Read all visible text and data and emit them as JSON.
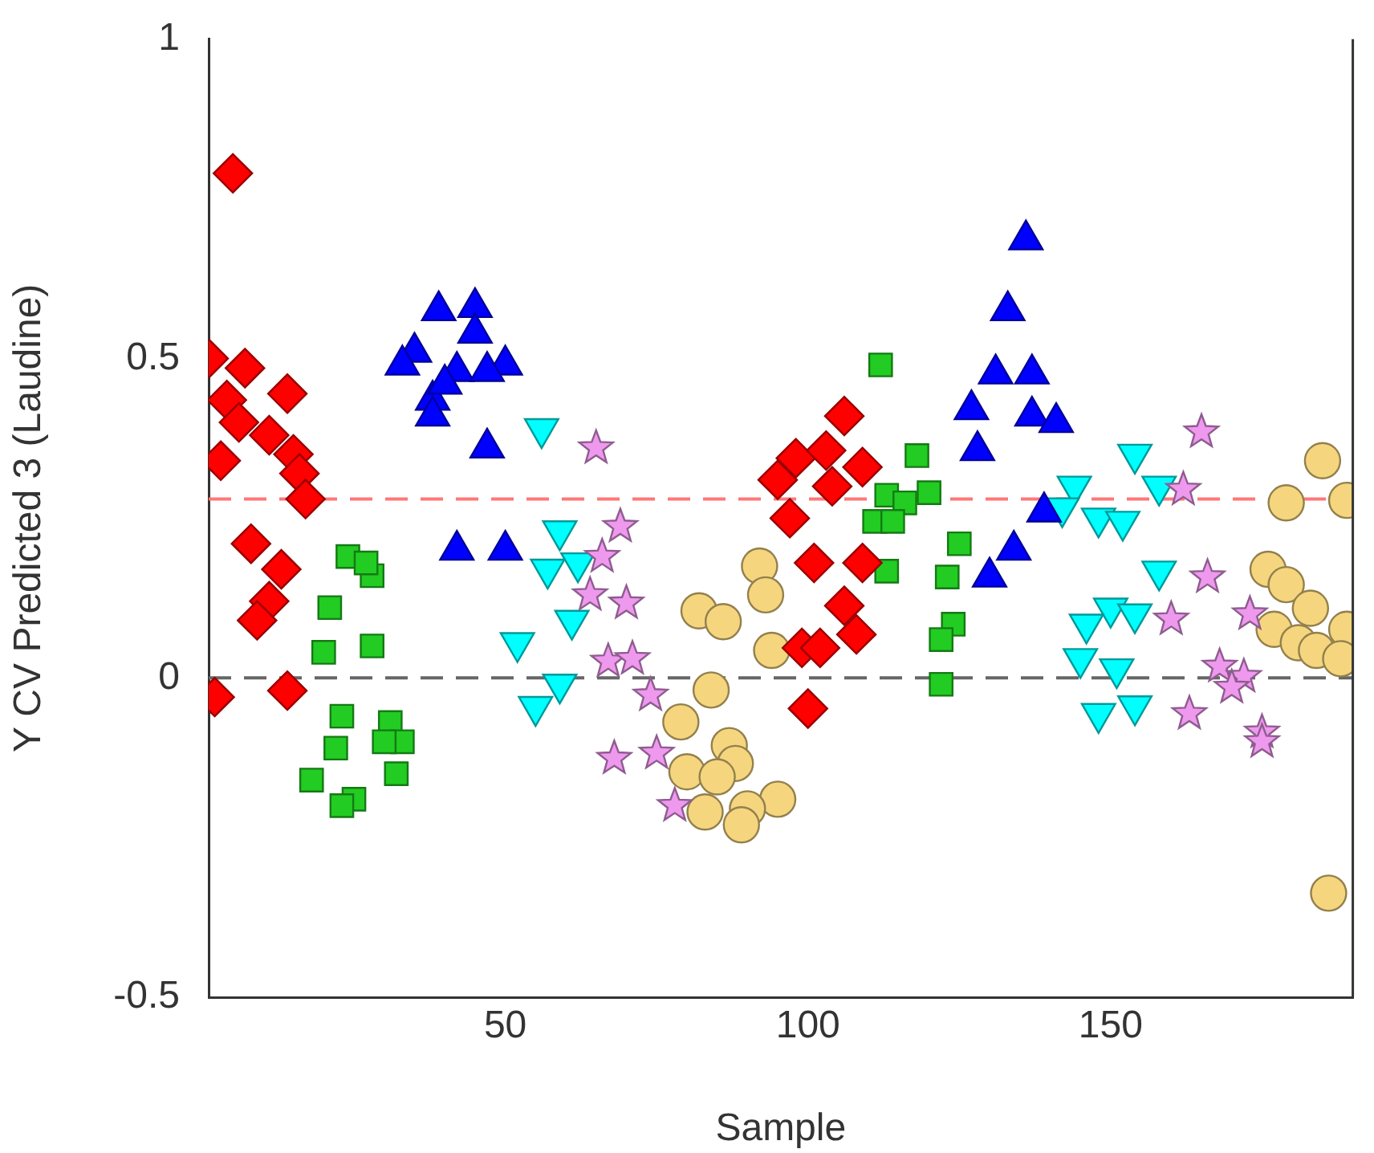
{
  "chart_data": {
    "type": "scatter",
    "xlabel": "Sample",
    "ylabel": "Y CV Predicted 3 (Laudine)",
    "xlim": [
      1,
      190
    ],
    "ylim": [
      -0.5,
      1
    ],
    "xticks": [
      50,
      100,
      150
    ],
    "yticks": [
      -0.5,
      0,
      0.5,
      1
    ],
    "grid": false,
    "ref_lines": [
      {
        "axis": "y",
        "value": 0,
        "color": "#666666",
        "line_style": "dashed"
      },
      {
        "axis": "y",
        "value": 0.28,
        "color": "#ff7777",
        "line_style": "dashed"
      }
    ],
    "series": [
      {
        "color": "#ff0000",
        "marker": "diamond",
        "x": [
          5,
          1,
          7,
          14,
          4,
          6,
          11,
          3,
          15,
          16,
          17,
          8,
          13,
          11,
          9,
          2,
          14,
          106,
          98,
          103,
          109,
          95,
          104,
          97,
          101,
          109,
          106,
          108,
          99,
          102,
          100
        ],
        "values": [
          0.79,
          0.5,
          0.485,
          0.445,
          0.435,
          0.4,
          0.38,
          0.34,
          0.35,
          0.32,
          0.28,
          0.21,
          0.17,
          0.12,
          0.09,
          -0.03,
          -0.02,
          0.41,
          0.344,
          0.356,
          0.33,
          0.31,
          0.3,
          0.25,
          0.18,
          0.18,
          0.113,
          0.068,
          0.047,
          0.047,
          -0.048
        ]
      },
      {
        "color": "#22cc22",
        "marker": "square",
        "x": [
          24,
          28,
          27,
          21,
          20,
          28,
          23,
          31,
          33,
          30,
          22,
          32,
          18,
          25,
          23,
          112,
          118,
          113,
          116,
          120,
          111,
          114,
          113,
          125,
          123,
          124,
          122,
          122
        ],
        "values": [
          0.19,
          0.16,
          0.18,
          0.11,
          0.04,
          0.05,
          -0.06,
          -0.07,
          -0.1,
          -0.1,
          -0.11,
          -0.15,
          -0.16,
          -0.19,
          -0.2,
          0.49,
          0.348,
          0.286,
          0.274,
          0.29,
          0.245,
          0.245,
          0.167,
          0.21,
          0.158,
          0.084,
          0.06,
          -0.01
        ]
      },
      {
        "color": "#0000ff",
        "marker": "triangle",
        "x": [
          39,
          45,
          45,
          35,
          50,
          42,
          47,
          38,
          38,
          47,
          42,
          50,
          33,
          40,
          136,
          133,
          131,
          137,
          127,
          137,
          141,
          128,
          139,
          134,
          130
        ],
        "values": [
          0.575,
          0.58,
          0.54,
          0.51,
          0.49,
          0.48,
          0.48,
          0.435,
          0.41,
          0.36,
          0.2,
          0.2,
          0.49,
          0.46,
          0.686,
          0.575,
          0.476,
          0.476,
          0.42,
          0.41,
          0.4,
          0.356,
          0.26,
          0.2,
          0.158
        ]
      },
      {
        "color": "#00ffff",
        "marker": "triangle-down",
        "x": [
          56,
          59,
          62,
          57,
          61,
          59,
          55,
          53,
          52,
          154,
          158,
          144,
          142,
          148,
          152,
          158,
          150,
          146,
          154,
          145,
          151,
          148,
          154
        ],
        "values": [
          0.39,
          0.23,
          0.18,
          0.17,
          0.09,
          -0.01,
          -0.045,
          null,
          0.055,
          0.35,
          0.3,
          0.3,
          0.266,
          0.25,
          0.245,
          0.167,
          0.109,
          0.084,
          0.1,
          0.03,
          0.014,
          -0.056,
          -0.044
        ]
      },
      {
        "color": "#ee99ee",
        "marker": "star",
        "x": [
          65,
          69,
          66,
          64,
          70,
          67,
          71,
          74,
          68,
          75,
          78,
          165,
          162,
          166,
          160,
          173,
          168,
          172,
          170,
          163,
          175,
          175
        ],
        "values": [
          0.36,
          0.237,
          0.19,
          0.13,
          0.117,
          0.026,
          0.03,
          -0.027,
          -0.126,
          -0.118,
          -0.2,
          0.385,
          0.295,
          0.158,
          0.092,
          0.1,
          0.018,
          0.002,
          -0.015,
          -0.056,
          -0.085,
          -0.1
        ]
      },
      {
        "color": "#f5d67f",
        "marker": "circle",
        "x": [
          92,
          93,
          82,
          86,
          94,
          84,
          79,
          87,
          88,
          80,
          85,
          95,
          83,
          90,
          89,
          185,
          179,
          189,
          176,
          179,
          183,
          177,
          189,
          181,
          184,
          188,
          186
        ],
        "values": [
          0.175,
          0.13,
          0.105,
          0.088,
          0.043,
          -0.019,
          -0.069,
          -0.106,
          -0.134,
          -0.147,
          -0.155,
          -0.19,
          -0.21,
          -0.205,
          -0.23,
          0.34,
          0.274,
          0.278,
          0.17,
          0.146,
          0.109,
          0.076,
          0.076,
          0.055,
          0.043,
          0.03,
          -0.337
        ]
      }
    ]
  }
}
